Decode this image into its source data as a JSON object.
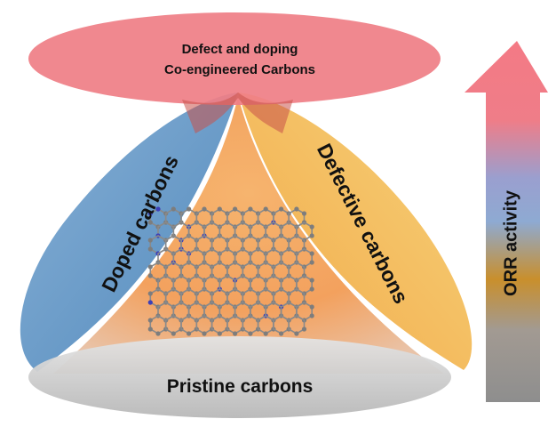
{
  "top_title": {
    "line1": "Defect and doping",
    "line2": "Co-engineered Carbons"
  },
  "left_lobe_label": "Doped carbons",
  "right_lobe_label": "Defective carbons",
  "bottom_label": "Pristine carbons",
  "arrow_label": "ORR activity",
  "colors": {
    "top_ellipse": "#ef7f86",
    "left_lobe": "#5f95c4",
    "right_lobe": "#f2b84e",
    "center_fill": "#f3a460",
    "bottom_ellipse": "#c9c9c9",
    "arrow_gradient": [
      "#f47a85",
      "#c7869c",
      "#8aa2cf",
      "#c98f2c",
      "#9a9a9a",
      "#8d8d8d"
    ],
    "carbon_atom": "#7d7d7d",
    "nitrogen_atom": "#3c3fb8"
  },
  "icons": [
    "graphene-lattice-icon",
    "up-arrow-icon"
  ]
}
